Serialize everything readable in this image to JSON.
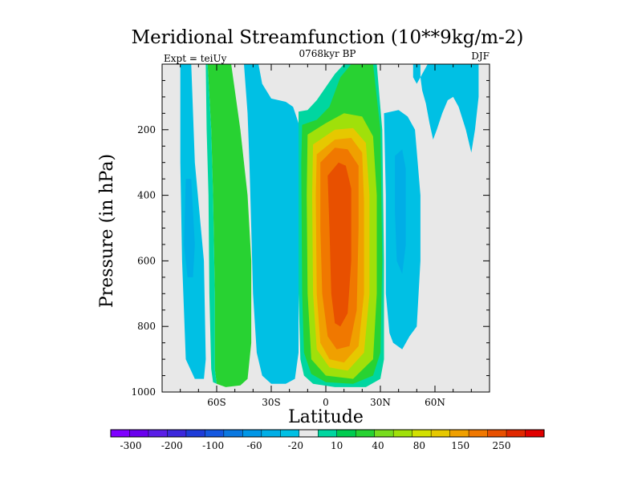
{
  "chart_data": {
    "type": "heatmap",
    "title": "Meridional Streamfunction (10**9kg/m-2)",
    "subtitle": "0768kyr BP",
    "left_label": "Expt = teiUy",
    "right_label": "DJF",
    "xlabel": "Latitude",
    "ylabel": "Pressure (in hPa)",
    "xlim": [
      -90,
      90
    ],
    "ylim": [
      0,
      1000
    ],
    "x_ticks": [
      {
        "value": -60,
        "label": "60S"
      },
      {
        "value": -30,
        "label": "30S"
      },
      {
        "value": 0,
        "label": "0"
      },
      {
        "value": 30,
        "label": "30N"
      },
      {
        "value": 60,
        "label": "60N"
      }
    ],
    "y_ticks": [
      {
        "value": 200,
        "label": "200"
      },
      {
        "value": 400,
        "label": "400"
      },
      {
        "value": 600,
        "label": "600"
      },
      {
        "value": 800,
        "label": "800"
      },
      {
        "value": 1000,
        "label": "1000"
      }
    ],
    "colorbar": {
      "colors": [
        "#7f00ff",
        "#6a00ee",
        "#5a1ee6",
        "#3c28dc",
        "#1e3cd8",
        "#1458e0",
        "#0a78e0",
        "#0096e6",
        "#00aee6",
        "#00c0e4",
        "#e8e8e8",
        "#00d6a0",
        "#00cc50",
        "#28d232",
        "#78dc1e",
        "#a0e00a",
        "#d2e000",
        "#e6c800",
        "#f0a000",
        "#f07800",
        "#e85000",
        "#e02800",
        "#e00000"
      ],
      "labels": [
        "-300",
        "-200",
        "-100",
        "-60",
        "-20",
        "10",
        "40",
        "80",
        "150",
        "250"
      ]
    },
    "regions": [
      {
        "name": "sh-outer-cell",
        "level": "-20",
        "color": "#00c0e4",
        "points": [
          [
            -80,
            0
          ],
          [
            -74,
            0
          ],
          [
            -72,
            300
          ],
          [
            -67,
            600
          ],
          [
            -66,
            900
          ],
          [
            -67,
            960
          ],
          [
            -72,
            960
          ],
          [
            -77,
            900
          ],
          [
            -79,
            600
          ],
          [
            -80,
            300
          ]
        ]
      },
      {
        "name": "sh-outer-cell-core",
        "level": "-60",
        "color": "#00aee6",
        "points": [
          [
            -77,
            350
          ],
          [
            -74,
            350
          ],
          [
            -72,
            550
          ],
          [
            -73,
            650
          ],
          [
            -76,
            650
          ],
          [
            -78,
            550
          ]
        ]
      },
      {
        "name": "ferrel-cell",
        "level": "40",
        "color": "#28d232",
        "points": [
          [
            -65,
            0
          ],
          [
            -52,
            0
          ],
          [
            -47,
            200
          ],
          [
            -43,
            400
          ],
          [
            -41,
            600
          ],
          [
            -41,
            850
          ],
          [
            -43,
            960
          ],
          [
            -47,
            980
          ],
          [
            -55,
            985
          ],
          [
            -60,
            975
          ],
          [
            -61,
            930
          ],
          [
            -61,
            700
          ],
          [
            -62,
            400
          ],
          [
            -63,
            200
          ]
        ]
      },
      {
        "name": "ferrel-cell-edge",
        "level": "10",
        "color": "#00d6a0",
        "points": [
          [
            -66,
            0
          ],
          [
            -65,
            0
          ],
          [
            -63,
            200
          ],
          [
            -62,
            400
          ],
          [
            -61,
            700
          ],
          [
            -61,
            930
          ],
          [
            -60,
            975
          ],
          [
            -62,
            970
          ],
          [
            -63,
            930
          ],
          [
            -64,
            700
          ],
          [
            -64.5,
            400
          ],
          [
            -65.5,
            200
          ]
        ]
      },
      {
        "name": "sh-subtropical-cell",
        "level": "-20",
        "color": "#00c0e4",
        "points": [
          [
            -45,
            0
          ],
          [
            -37,
            0
          ],
          [
            -35,
            60
          ],
          [
            -30,
            105
          ],
          [
            -22,
            115
          ],
          [
            -18,
            130
          ],
          [
            -15,
            180
          ],
          [
            -15,
            880
          ],
          [
            -17,
            960
          ],
          [
            -22,
            975
          ],
          [
            -30,
            975
          ],
          [
            -35,
            950
          ],
          [
            -38,
            880
          ],
          [
            -40,
            700
          ],
          [
            -41,
            500
          ],
          [
            -42,
            300
          ],
          [
            -43,
            150
          ]
        ]
      },
      {
        "name": "hadley-cell-l10",
        "level": "10",
        "color": "#00d6a0",
        "points": [
          [
            -15,
            145
          ],
          [
            -10,
            140
          ],
          [
            -5,
            110
          ],
          [
            0,
            70
          ],
          [
            5,
            30
          ],
          [
            10,
            0
          ],
          [
            28,
            0
          ],
          [
            31,
            200
          ],
          [
            32,
            600
          ],
          [
            32,
            900
          ],
          [
            30,
            960
          ],
          [
            22,
            985
          ],
          [
            5,
            985
          ],
          [
            -7,
            975
          ],
          [
            -12,
            950
          ],
          [
            -14,
            900
          ],
          [
            -15,
            700
          ],
          [
            -15,
            300
          ]
        ]
      },
      {
        "name": "hadley-cell-l40",
        "level": "40",
        "color": "#28d232",
        "points": [
          [
            -13,
            185
          ],
          [
            -5,
            170
          ],
          [
            2,
            130
          ],
          [
            8,
            40
          ],
          [
            14,
            0
          ],
          [
            26,
            0
          ],
          [
            30,
            200
          ],
          [
            31,
            600
          ],
          [
            30,
            880
          ],
          [
            26,
            950
          ],
          [
            15,
            975
          ],
          [
            0,
            970
          ],
          [
            -8,
            945
          ],
          [
            -12,
            880
          ],
          [
            -13,
            700
          ],
          [
            -13.5,
            300
          ]
        ]
      },
      {
        "name": "hadley-cell-l80",
        "level": "80",
        "color": "#a0e00a",
        "points": [
          [
            -10,
            215
          ],
          [
            0,
            180
          ],
          [
            10,
            150
          ],
          [
            20,
            160
          ],
          [
            26,
            220
          ],
          [
            28,
            400
          ],
          [
            28,
            700
          ],
          [
            26,
            900
          ],
          [
            15,
            960
          ],
          [
            0,
            950
          ],
          [
            -8,
            900
          ],
          [
            -10,
            700
          ],
          [
            -10.5,
            400
          ]
        ]
      },
      {
        "name": "hadley-cell-l120",
        "level": "120",
        "color": "#e6c800",
        "points": [
          [
            -7,
            245
          ],
          [
            5,
            200
          ],
          [
            15,
            195
          ],
          [
            22,
            240
          ],
          [
            24,
            400
          ],
          [
            24,
            700
          ],
          [
            21,
            880
          ],
          [
            12,
            935
          ],
          [
            2,
            925
          ],
          [
            -5,
            870
          ],
          [
            -7,
            700
          ],
          [
            -7.5,
            400
          ]
        ]
      },
      {
        "name": "hadley-cell-l150",
        "level": "150",
        "color": "#f0a000",
        "points": [
          [
            -5,
            275
          ],
          [
            5,
            230
          ],
          [
            14,
            225
          ],
          [
            20,
            270
          ],
          [
            21,
            420
          ],
          [
            21,
            700
          ],
          [
            18,
            860
          ],
          [
            10,
            910
          ],
          [
            2,
            900
          ],
          [
            -3,
            850
          ],
          [
            -5,
            700
          ],
          [
            -5.5,
            400
          ]
        ]
      },
      {
        "name": "hadley-cell-l200",
        "level": "200",
        "color": "#f07800",
        "points": [
          [
            -3,
            300
          ],
          [
            5,
            255
          ],
          [
            12,
            260
          ],
          [
            18,
            310
          ],
          [
            18,
            500
          ],
          [
            17,
            750
          ],
          [
            13,
            860
          ],
          [
            6,
            870
          ],
          [
            1,
            830
          ],
          [
            -2,
            700
          ],
          [
            -3,
            500
          ]
        ]
      },
      {
        "name": "hadley-cell-l250",
        "level": "250",
        "color": "#e85000",
        "points": [
          [
            1,
            340
          ],
          [
            7,
            300
          ],
          [
            11,
            310
          ],
          [
            14,
            380
          ],
          [
            14,
            600
          ],
          [
            12,
            760
          ],
          [
            8,
            800
          ],
          [
            5,
            790
          ],
          [
            3,
            700
          ],
          [
            2,
            500
          ]
        ]
      },
      {
        "name": "nh-cell",
        "level": "-20",
        "color": "#00c0e4",
        "points": [
          [
            32,
            150
          ],
          [
            40,
            140
          ],
          [
            45,
            160
          ],
          [
            49,
            200
          ],
          [
            52,
            400
          ],
          [
            52,
            600
          ],
          [
            51,
            700
          ],
          [
            50,
            800
          ],
          [
            46,
            830
          ],
          [
            42,
            870
          ],
          [
            37,
            850
          ],
          [
            35,
            820
          ],
          [
            33,
            700
          ],
          [
            33,
            400
          ]
        ]
      },
      {
        "name": "nh-cell-core",
        "level": "-60",
        "color": "#00aee6",
        "points": [
          [
            38,
            280
          ],
          [
            42,
            260
          ],
          [
            44,
            320
          ],
          [
            44,
            550
          ],
          [
            42,
            640
          ],
          [
            39,
            600
          ],
          [
            38,
            450
          ]
        ]
      },
      {
        "name": "nh-upper-cell",
        "level": "-20",
        "color": "#00c0e4",
        "points": [
          [
            56,
            0
          ],
          [
            84,
            0
          ],
          [
            84,
            100
          ],
          [
            82,
            200
          ],
          [
            80,
            270
          ],
          [
            77,
            200
          ],
          [
            73,
            130
          ],
          [
            70,
            100
          ],
          [
            67,
            110
          ],
          [
            64,
            150
          ],
          [
            61,
            200
          ],
          [
            59,
            230
          ],
          [
            57,
            180
          ],
          [
            55,
            120
          ],
          [
            53,
            80
          ],
          [
            52,
            40
          ]
        ]
      },
      {
        "name": "nh-polar-blob",
        "level": "-20",
        "color": "#00c0e4",
        "points": [
          [
            48,
            0
          ],
          [
            52,
            0
          ],
          [
            52,
            40
          ],
          [
            50,
            60
          ],
          [
            48,
            40
          ]
        ]
      }
    ]
  }
}
